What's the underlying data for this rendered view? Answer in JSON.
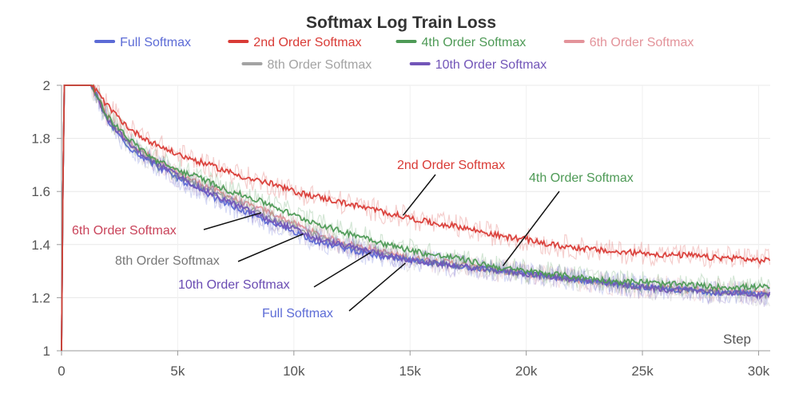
{
  "chart_data": {
    "type": "line",
    "title": "Softmax Log Train Loss",
    "xlabel": "Step",
    "ylabel": "",
    "xlim": [
      0,
      30500
    ],
    "ylim": [
      1,
      2
    ],
    "grid": true,
    "legend_placement": "top-center",
    "x_ticks": [
      {
        "value": 0,
        "label": "0"
      },
      {
        "value": 5000,
        "label": "5k"
      },
      {
        "value": 10000,
        "label": "10k"
      },
      {
        "value": 15000,
        "label": "15k"
      },
      {
        "value": 20000,
        "label": "20k"
      },
      {
        "value": 25000,
        "label": "25k"
      },
      {
        "value": 30000,
        "label": "30k"
      }
    ],
    "y_ticks": [
      {
        "value": 1,
        "label": "1"
      },
      {
        "value": 1.2,
        "label": "1.2"
      },
      {
        "value": 1.4,
        "label": "1.4"
      },
      {
        "value": 1.6,
        "label": "1.6"
      },
      {
        "value": 1.8,
        "label": "1.8"
      },
      {
        "value": 2,
        "label": "2"
      }
    ],
    "x": [
      0,
      100,
      1300,
      2000,
      3000,
      4000,
      5000,
      6000,
      7000,
      8000,
      9000,
      10000,
      11000,
      12000,
      13000,
      14000,
      15000,
      16000,
      17000,
      18000,
      19000,
      20000,
      21000,
      22000,
      23000,
      24000,
      25000,
      26000,
      27000,
      28000,
      29000,
      30000,
      30500
    ],
    "series": [
      {
        "name": "Full Softmax",
        "color": "#5c6bd6",
        "values": [
          1.0,
          2.0,
          2.0,
          1.86,
          1.76,
          1.7,
          1.65,
          1.6,
          1.56,
          1.52,
          1.48,
          1.45,
          1.41,
          1.39,
          1.37,
          1.35,
          1.34,
          1.33,
          1.32,
          1.31,
          1.3,
          1.29,
          1.28,
          1.27,
          1.26,
          1.25,
          1.24,
          1.23,
          1.23,
          1.22,
          1.22,
          1.21,
          1.21
        ]
      },
      {
        "name": "2nd Order Softmax",
        "color": "#d93b36",
        "values": [
          1.0,
          2.0,
          2.0,
          1.92,
          1.83,
          1.78,
          1.74,
          1.71,
          1.68,
          1.65,
          1.63,
          1.6,
          1.58,
          1.56,
          1.54,
          1.52,
          1.5,
          1.48,
          1.47,
          1.45,
          1.43,
          1.42,
          1.4,
          1.39,
          1.38,
          1.37,
          1.37,
          1.36,
          1.36,
          1.35,
          1.35,
          1.34,
          1.34
        ]
      },
      {
        "name": "4th Order Softmax",
        "color": "#4e9a56",
        "values": [
          1.0,
          2.0,
          2.0,
          1.88,
          1.79,
          1.72,
          1.68,
          1.65,
          1.61,
          1.58,
          1.55,
          1.51,
          1.48,
          1.45,
          1.43,
          1.4,
          1.38,
          1.36,
          1.35,
          1.33,
          1.31,
          1.3,
          1.29,
          1.28,
          1.27,
          1.26,
          1.26,
          1.25,
          1.25,
          1.24,
          1.24,
          1.24,
          1.24
        ]
      },
      {
        "name": "6th Order Softmax",
        "color": "#e3939a",
        "values": [
          1.0,
          2.0,
          2.0,
          1.87,
          1.78,
          1.72,
          1.67,
          1.63,
          1.59,
          1.55,
          1.52,
          1.48,
          1.44,
          1.41,
          1.39,
          1.37,
          1.35,
          1.34,
          1.33,
          1.31,
          1.3,
          1.29,
          1.28,
          1.27,
          1.26,
          1.25,
          1.24,
          1.24,
          1.23,
          1.23,
          1.22,
          1.22,
          1.22
        ]
      },
      {
        "name": "8th Order Softmax",
        "color": "#a3a3a3",
        "values": [
          1.0,
          2.0,
          2.0,
          1.87,
          1.77,
          1.71,
          1.66,
          1.62,
          1.58,
          1.54,
          1.5,
          1.47,
          1.43,
          1.4,
          1.38,
          1.36,
          1.34,
          1.33,
          1.32,
          1.31,
          1.3,
          1.29,
          1.28,
          1.27,
          1.26,
          1.25,
          1.24,
          1.23,
          1.23,
          1.22,
          1.22,
          1.21,
          1.21
        ]
      },
      {
        "name": "10th Order Softmax",
        "color": "#7255b8",
        "values": [
          1.0,
          2.0,
          2.0,
          1.87,
          1.77,
          1.71,
          1.66,
          1.61,
          1.57,
          1.53,
          1.49,
          1.46,
          1.42,
          1.4,
          1.38,
          1.36,
          1.34,
          1.33,
          1.32,
          1.31,
          1.3,
          1.29,
          1.28,
          1.27,
          1.26,
          1.25,
          1.24,
          1.23,
          1.23,
          1.22,
          1.22,
          1.21,
          1.21
        ]
      }
    ],
    "annotations": [
      {
        "text": "2nd Order Softmax",
        "color": "#d93b36",
        "x": 14700,
        "y": 1.51
      },
      {
        "text": "4th Order Softmax",
        "color": "#4e9a56",
        "x": 19000,
        "y": 1.32
      },
      {
        "text": "6th Order Softmax",
        "color": "#c9435a",
        "x": 8600,
        "y": 1.52
      },
      {
        "text": "8th Order Softmax",
        "color": "#777777",
        "x": 10400,
        "y": 1.44
      },
      {
        "text": "10th Order Softmax",
        "color": "#6a4cb3",
        "x": 13300,
        "y": 1.37
      },
      {
        "text": "Full Softmax",
        "color": "#5c6bd6",
        "x": 14800,
        "y": 1.33
      }
    ]
  }
}
